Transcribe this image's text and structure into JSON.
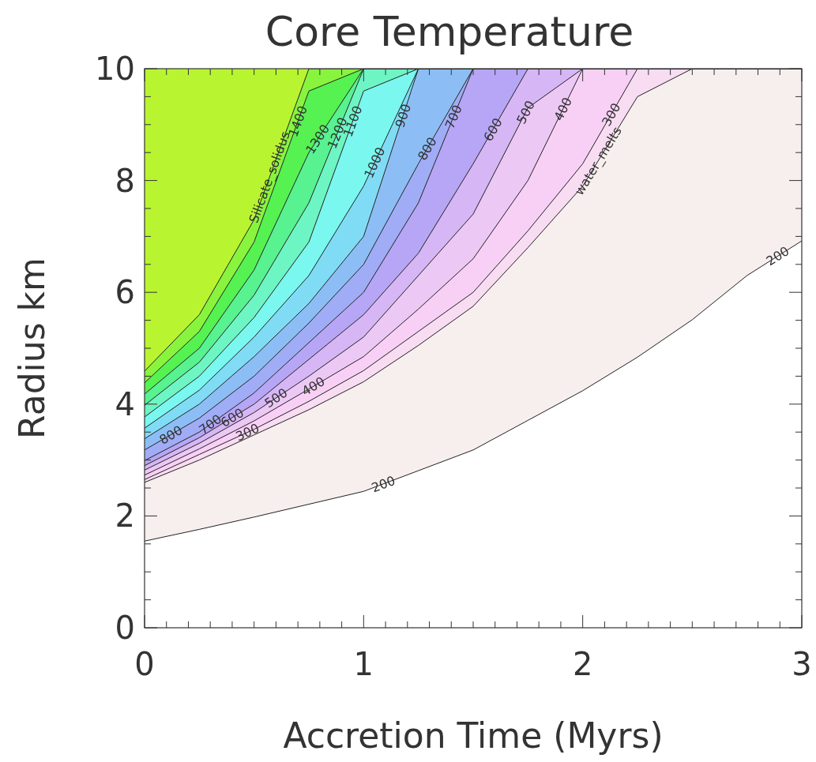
{
  "chart_data": {
    "type": "area",
    "stacked": true,
    "grid": false,
    "title": "Core Temperature",
    "xlabel": "Accretion Time (Myrs)",
    "ylabel": "Radius km",
    "xlim": [
      0,
      3
    ],
    "ylim": [
      0,
      10
    ],
    "xticks": [
      0,
      {
        "value": 0.1,
        "label": null
      },
      {
        "value": 0.2,
        "label": null
      },
      {
        "value": 0.3,
        "label": null
      },
      {
        "value": 0.4,
        "label": null
      },
      {
        "value": 0.5,
        "label": null
      },
      {
        "value": 0.6,
        "label": null
      },
      {
        "value": 0.7,
        "label": null
      },
      {
        "value": 0.8,
        "label": null
      },
      {
        "value": 0.9,
        "label": null
      },
      1,
      {
        "value": 1.1,
        "label": null
      },
      {
        "value": 1.2,
        "label": null
      },
      {
        "value": 1.3,
        "label": null
      },
      {
        "value": 1.4,
        "label": null
      },
      {
        "value": 1.5,
        "label": null
      },
      {
        "value": 1.6,
        "label": null
      },
      {
        "value": 1.7,
        "label": null
      },
      {
        "value": 1.8,
        "label": null
      },
      {
        "value": 1.9,
        "label": null
      },
      2,
      {
        "value": 2.1,
        "label": null
      },
      {
        "value": 2.2,
        "label": null
      },
      {
        "value": 2.3,
        "label": null
      },
      {
        "value": 2.4,
        "label": null
      },
      {
        "value": 2.5,
        "label": null
      },
      {
        "value": 2.6,
        "label": null
      },
      {
        "value": 2.7,
        "label": null
      },
      {
        "value": 2.8,
        "label": null
      },
      {
        "value": 2.9,
        "label": null
      },
      3
    ],
    "yticks": [
      0,
      {
        "value": 0.5,
        "label": null
      },
      {
        "value": 1,
        "label": null
      },
      {
        "value": 1.5,
        "label": null
      },
      2,
      {
        "value": 2.5,
        "label": null
      },
      {
        "value": 3,
        "label": null
      },
      {
        "value": 3.5,
        "label": null
      },
      4,
      {
        "value": 4.5,
        "label": null
      },
      {
        "value": 5,
        "label": null
      },
      {
        "value": 5.5,
        "label": null
      },
      6,
      {
        "value": 6.5,
        "label": null
      },
      {
        "value": 7,
        "label": null
      },
      {
        "value": 7.5,
        "label": null
      },
      8,
      {
        "value": 8.5,
        "label": null
      },
      {
        "value": 9,
        "label": null
      },
      {
        "value": 9.5,
        "label": null
      },
      10
    ],
    "x": [
      0,
      0.25,
      0.5,
      0.75,
      1,
      1.25,
      1.5,
      1.75,
      2,
      2.25,
      2.5,
      2.75,
      3
    ],
    "series": [
      {
        "color": "#ffffff",
        "values": [
          1.55,
          1.76,
          1.98,
          2.21,
          2.44,
          2.81,
          3.18,
          3.71,
          4.24,
          4.84,
          5.51,
          6.3,
          6.92
        ]
      },
      {
        "color": "#f7eeee",
        "values": [
          1.05,
          1.24,
          1.47,
          1.69,
          1.96,
          2.24,
          2.57,
          3.09,
          3.66,
          4.66,
          4.49,
          3.7,
          3.08
        ]
      },
      {
        "color": "#f8dcf2",
        "values": [
          0.05,
          0.1,
          0.1,
          0.15,
          0.2,
          0.25,
          0.25,
          0.3,
          0.4,
          0.5,
          0,
          0,
          0
        ]
      },
      {
        "color": "#f8d0f6",
        "values": [
          0.08,
          0.1,
          0.15,
          0.22,
          0.25,
          0.4,
          0.6,
          0.9,
          1.7,
          0,
          0,
          0,
          0
        ]
      },
      {
        "color": "#ecc8f5",
        "values": [
          0.09,
          0.1,
          0.15,
          0.23,
          0.35,
          0.6,
          0.8,
          1.3,
          0,
          0,
          0,
          0,
          0
        ]
      },
      {
        "color": "#d6b6f5",
        "values": [
          0.08,
          0.1,
          0.15,
          0.3,
          0.4,
          0.4,
          0.9,
          0.7,
          0,
          0,
          0,
          0,
          0
        ]
      },
      {
        "color": "#b6a6f5",
        "values": [
          0.09,
          0.1,
          0.2,
          0.3,
          0.4,
          0.9,
          1.7,
          0,
          0,
          0,
          0,
          0,
          0
        ]
      },
      {
        "color": "#a0acf6",
        "values": [
          0.19,
          0.25,
          0.3,
          0.35,
          0.5,
          0.7,
          0,
          0,
          0,
          0,
          0,
          0,
          0
        ]
      },
      {
        "color": "#8cbef5",
        "values": [
          0.2,
          0.25,
          0.35,
          0.35,
          0.5,
          1.7,
          0,
          0,
          0,
          0,
          0,
          0,
          0
        ]
      },
      {
        "color": "#80dcf5",
        "values": [
          0.19,
          0.25,
          0.35,
          0.5,
          0.9,
          0,
          0,
          0,
          0,
          0,
          0,
          0,
          0
        ]
      },
      {
        "color": "#7af7ee",
        "values": [
          0.2,
          0.25,
          0.35,
          0.6,
          1.7,
          0,
          0,
          0,
          0,
          0,
          0,
          0,
          0
        ]
      },
      {
        "color": "#6ef5c4",
        "values": [
          0.21,
          0.25,
          0.4,
          0.7,
          0.4,
          0,
          0,
          0,
          0,
          0,
          0,
          0,
          0
        ]
      },
      {
        "color": "#58f290",
        "values": [
          0.2,
          0.25,
          0.45,
          0.9,
          0,
          0,
          0,
          0,
          0,
          0,
          0,
          0,
          0
        ]
      },
      {
        "color": "#55f252",
        "values": [
          0.2,
          0.3,
          0.5,
          1.1,
          0,
          0,
          0,
          0,
          0,
          0,
          0,
          0,
          0
        ]
      },
      {
        "color": "#88f43e",
        "values": [
          0.21,
          0.3,
          0.4,
          0.4,
          0,
          0,
          0,
          0,
          0,
          0,
          0,
          0,
          0
        ]
      },
      {
        "color": "#b8f530",
        "values": [
          5.41,
          4.4,
          2.7,
          0,
          0,
          0,
          0,
          0,
          0,
          0,
          0,
          0,
          0
        ]
      }
    ],
    "annotations": [
      {
        "text": "200",
        "x": 1.09,
        "y": 2.57
      },
      {
        "text": "200",
        "x": 2.89,
        "y": 6.65
      },
      {
        "text": "300",
        "x": 0.47,
        "y": 3.5
      },
      {
        "text": "400",
        "x": 0.77,
        "y": 4.32
      },
      {
        "text": "500",
        "x": 0.6,
        "y": 4.11
      },
      {
        "text": "600",
        "x": 0.4,
        "y": 3.76
      },
      {
        "text": "700",
        "x": 0.3,
        "y": 3.64
      },
      {
        "text": "800",
        "x": 0.12,
        "y": 3.45
      },
      {
        "text": "300",
        "x": 2.13,
        "y": 9.18
      },
      {
        "text": "400",
        "x": 1.91,
        "y": 9.28
      },
      {
        "text": "500",
        "x": 1.74,
        "y": 9.22
      },
      {
        "text": "600",
        "x": 1.59,
        "y": 8.91
      },
      {
        "text": "700",
        "x": 1.41,
        "y": 9.14
      },
      {
        "text": "800",
        "x": 1.29,
        "y": 8.57
      },
      {
        "text": "900",
        "x": 1.18,
        "y": 9.16
      },
      {
        "text": "1000",
        "x": 1.05,
        "y": 8.32
      },
      {
        "text": "1100",
        "x": 0.95,
        "y": 9.06
      },
      {
        "text": "1200",
        "x": 0.88,
        "y": 8.85
      },
      {
        "text": "1300",
        "x": 0.79,
        "y": 8.74
      },
      {
        "text": "1400",
        "x": 0.7,
        "y": 9.06
      },
      {
        "text": "Silicate_solidus",
        "x": 0.57,
        "y": 8.06
      },
      {
        "text": "water_melts",
        "x": 2.07,
        "y": 8.35
      }
    ]
  }
}
